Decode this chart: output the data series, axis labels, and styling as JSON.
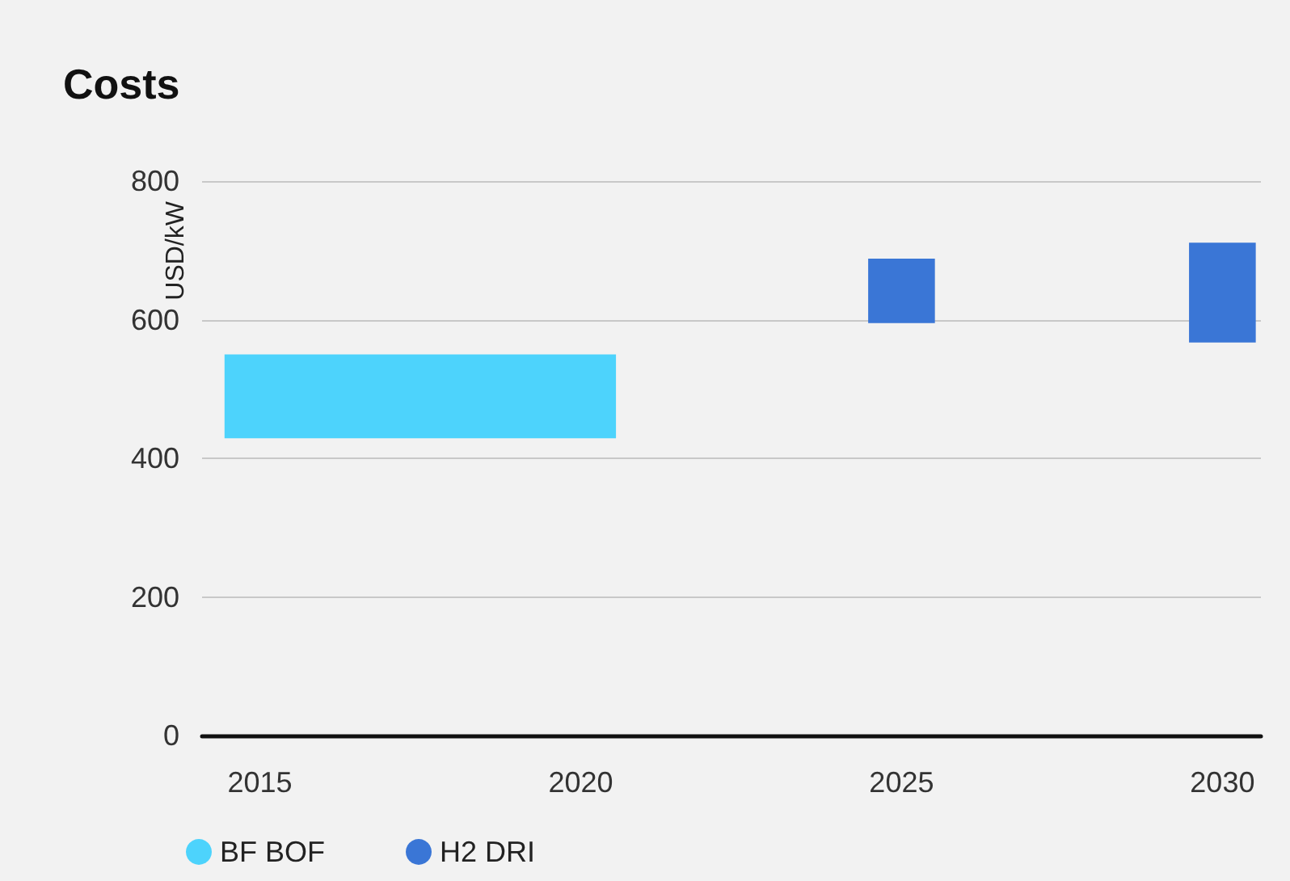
{
  "chart_data": {
    "type": "bar",
    "title": "Costs",
    "ylabel": "USD/kW",
    "xlim": [
      2014.1,
      2030.6
    ],
    "xticks": [
      2015,
      2020,
      2025,
      2030
    ],
    "ylim": [
      0,
      800
    ],
    "yticks": [
      0,
      200,
      400,
      600,
      800
    ],
    "grid": "y",
    "legend": "bottom left",
    "series": [
      {
        "name": "BF BOF",
        "color": "#4dd3fc",
        "x": [
          2017.5
        ],
        "base": [
          429
        ],
        "values": [
          121
        ]
      },
      {
        "name": "H2 DRI",
        "color": "#3a76d6",
        "x": [
          2025,
          2030
        ],
        "base": [
          595,
          567
        ],
        "values": [
          93,
          144
        ]
      }
    ]
  }
}
